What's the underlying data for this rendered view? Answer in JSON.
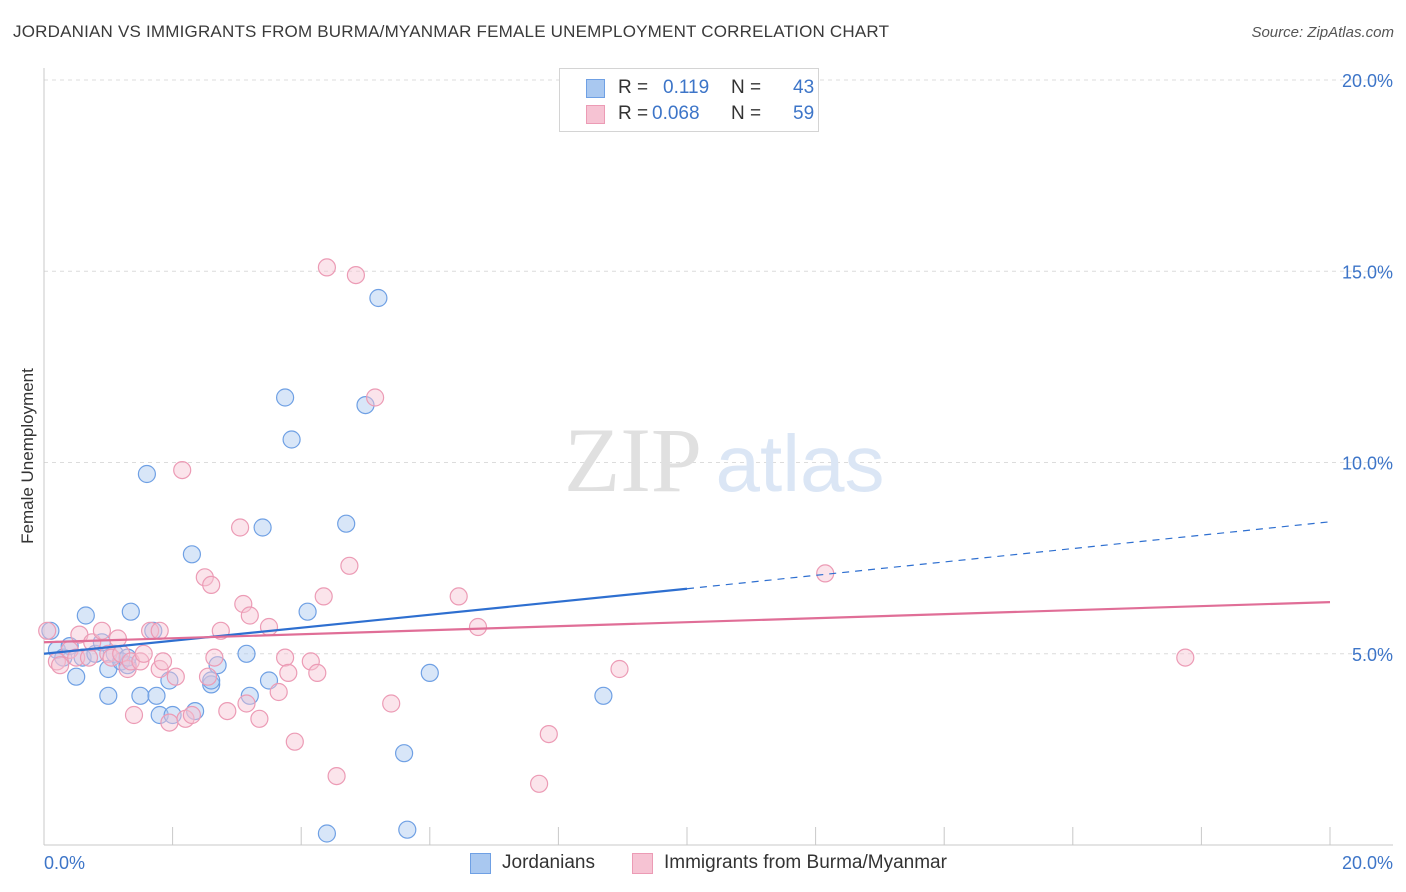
{
  "header": {
    "title": "JORDANIAN VS IMMIGRANTS FROM BURMA/MYANMAR FEMALE UNEMPLOYMENT CORRELATION CHART",
    "source": "Source: ZipAtlas.com"
  },
  "watermark": {
    "zip": "ZIP",
    "atlas": "atlas"
  },
  "legend": {
    "r_label": "R =",
    "n_label": "N =",
    "series": [
      {
        "r": "0.119",
        "n": "43"
      },
      {
        "r": "0.068",
        "n": "59"
      }
    ]
  },
  "chart_data": {
    "type": "scatter",
    "title": "JORDANIAN VS IMMIGRANTS FROM BURMA/MYANMAR FEMALE UNEMPLOYMENT CORRELATION CHART",
    "xlabel": "",
    "ylabel": "Female Unemployment",
    "xlim": [
      0,
      20
    ],
    "ylim": [
      0,
      20
    ],
    "x_tick_labels": [
      "0.0%",
      "20.0%"
    ],
    "y_ticks": [
      5,
      10,
      15,
      20
    ],
    "y_tick_labels": [
      "5.0%",
      "10.0%",
      "15.0%",
      "20.0%"
    ],
    "grid": true,
    "legend_position": "bottom",
    "series": [
      {
        "name": "Jordanians",
        "color": "#6fa0e4",
        "fill": "#a9c8f0",
        "trend_color": "#2e6fd0",
        "trend": {
          "x0": 0.0,
          "y0": 5.0,
          "x1": 10.0,
          "y1": 6.7,
          "dashed_to_x": 20.0,
          "dashed_to_y": 8.45
        },
        "points": [
          [
            0.1,
            5.6
          ],
          [
            0.2,
            5.1
          ],
          [
            0.3,
            4.9
          ],
          [
            0.4,
            5.2
          ],
          [
            0.5,
            4.4
          ],
          [
            0.6,
            4.9
          ],
          [
            0.65,
            6.0
          ],
          [
            0.8,
            5.0
          ],
          [
            0.9,
            5.3
          ],
          [
            1.0,
            3.9
          ],
          [
            1.0,
            4.6
          ],
          [
            1.1,
            5.0
          ],
          [
            1.2,
            4.8
          ],
          [
            1.3,
            4.7
          ],
          [
            1.3,
            4.9
          ],
          [
            1.35,
            6.1
          ],
          [
            1.5,
            3.9
          ],
          [
            1.6,
            9.7
          ],
          [
            1.7,
            5.6
          ],
          [
            1.75,
            3.9
          ],
          [
            1.8,
            3.4
          ],
          [
            1.95,
            4.3
          ],
          [
            2.0,
            3.4
          ],
          [
            2.3,
            7.6
          ],
          [
            2.35,
            3.5
          ],
          [
            2.6,
            4.2
          ],
          [
            2.6,
            4.3
          ],
          [
            2.7,
            4.7
          ],
          [
            3.15,
            5.0
          ],
          [
            3.2,
            3.9
          ],
          [
            3.4,
            8.3
          ],
          [
            3.5,
            4.3
          ],
          [
            3.75,
            11.7
          ],
          [
            3.85,
            10.6
          ],
          [
            4.1,
            6.1
          ],
          [
            4.4,
            0.3
          ],
          [
            4.7,
            8.4
          ],
          [
            5.0,
            11.5
          ],
          [
            5.2,
            14.3
          ],
          [
            5.6,
            2.4
          ],
          [
            5.65,
            0.4
          ],
          [
            6.0,
            4.5
          ],
          [
            8.7,
            3.9
          ]
        ]
      },
      {
        "name": "Immigrants from Burma/Myanmar",
        "color": "#ec9bb5",
        "fill": "#f6c3d3",
        "trend_color": "#e06e97",
        "trend": {
          "x0": 0.0,
          "y0": 5.3,
          "x1": 20.0,
          "y1": 6.35
        },
        "points": [
          [
            0.05,
            5.6
          ],
          [
            0.2,
            4.8
          ],
          [
            0.25,
            4.7
          ],
          [
            0.4,
            5.1
          ],
          [
            0.5,
            4.9
          ],
          [
            0.55,
            5.5
          ],
          [
            0.7,
            4.9
          ],
          [
            0.75,
            5.3
          ],
          [
            0.9,
            5.6
          ],
          [
            1.0,
            5.0
          ],
          [
            1.05,
            4.9
          ],
          [
            1.15,
            5.4
          ],
          [
            1.2,
            5.0
          ],
          [
            1.3,
            4.6
          ],
          [
            1.35,
            4.8
          ],
          [
            1.4,
            3.4
          ],
          [
            1.5,
            4.8
          ],
          [
            1.55,
            5.0
          ],
          [
            1.65,
            5.6
          ],
          [
            1.8,
            5.6
          ],
          [
            1.8,
            4.6
          ],
          [
            1.85,
            4.8
          ],
          [
            1.95,
            3.2
          ],
          [
            2.05,
            4.4
          ],
          [
            2.15,
            9.8
          ],
          [
            2.2,
            3.3
          ],
          [
            2.3,
            3.4
          ],
          [
            2.5,
            7.0
          ],
          [
            2.55,
            4.4
          ],
          [
            2.6,
            6.8
          ],
          [
            2.65,
            4.9
          ],
          [
            2.75,
            5.6
          ],
          [
            2.85,
            3.5
          ],
          [
            3.05,
            8.3
          ],
          [
            3.1,
            6.3
          ],
          [
            3.15,
            3.7
          ],
          [
            3.2,
            6.0
          ],
          [
            3.35,
            3.3
          ],
          [
            3.5,
            5.7
          ],
          [
            3.65,
            4.0
          ],
          [
            3.75,
            4.9
          ],
          [
            3.8,
            4.5
          ],
          [
            3.9,
            2.7
          ],
          [
            4.15,
            4.8
          ],
          [
            4.25,
            4.5
          ],
          [
            4.35,
            6.5
          ],
          [
            4.4,
            15.1
          ],
          [
            4.55,
            1.8
          ],
          [
            4.75,
            7.3
          ],
          [
            4.85,
            14.9
          ],
          [
            5.15,
            11.7
          ],
          [
            5.4,
            3.7
          ],
          [
            6.45,
            6.5
          ],
          [
            6.75,
            5.7
          ],
          [
            7.7,
            1.6
          ],
          [
            7.85,
            2.9
          ],
          [
            8.95,
            4.6
          ],
          [
            12.15,
            7.1
          ],
          [
            17.75,
            4.9
          ]
        ]
      }
    ]
  },
  "bottom_legend": [
    "Jordanians",
    "Immigrants from Burma/Myanmar"
  ]
}
